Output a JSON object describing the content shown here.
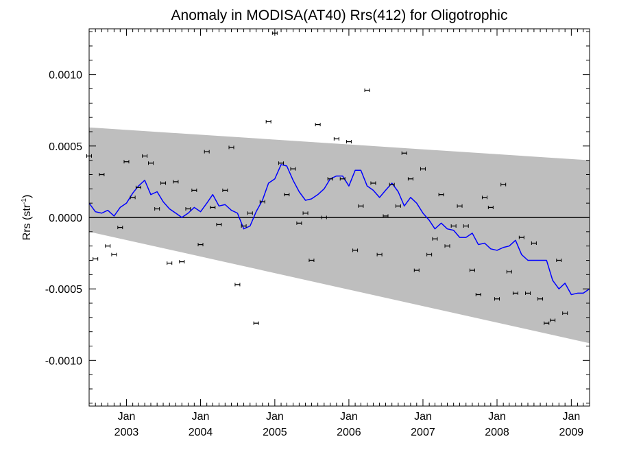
{
  "chart_data": {
    "type": "line",
    "title": "Anomaly in MODISA(AT40) Rrs(412) for Oligotrophic",
    "ylabel": "Rrs (str",
    "ylabel_exp": "-1",
    "ylabel_close": ")",
    "xlabel": "",
    "xlim": [
      "2002-07-01",
      "2009-04-01"
    ],
    "ylim": [
      -0.00132,
      0.00132
    ],
    "grid": false,
    "x_ticks": [
      {
        "month": "Jan",
        "year": "2003",
        "date": "2003-01-01"
      },
      {
        "month": "Jan",
        "year": "2004",
        "date": "2004-01-01"
      },
      {
        "month": "Jan",
        "year": "2005",
        "date": "2005-01-01"
      },
      {
        "month": "Jan",
        "year": "2006",
        "date": "2006-01-01"
      },
      {
        "month": "Jan",
        "year": "2007",
        "date": "2007-01-01"
      },
      {
        "month": "Jan",
        "year": "2008",
        "date": "2008-01-01"
      },
      {
        "month": "Jan",
        "year": "2009",
        "date": "2009-01-01"
      }
    ],
    "y_ticks": [
      {
        "value": 0.001,
        "label": "0.0010"
      },
      {
        "value": 0.0005,
        "label": "0.0005"
      },
      {
        "value": 0.0,
        "label": "0.0000"
      },
      {
        "value": -0.0005,
        "label": "-0.0005"
      },
      {
        "value": -0.001,
        "label": "-0.0010"
      }
    ],
    "zero_line": 0.0,
    "band": {
      "color": "#bebebe",
      "upper": [
        [
          "2002-07-01",
          0.00063
        ],
        [
          "2009-04-01",
          0.0004
        ]
      ],
      "lower": [
        [
          "2002-07-01",
          -0.0001
        ],
        [
          "2009-04-01",
          -0.00088
        ]
      ]
    },
    "series": [
      {
        "color": "#0000ff",
        "points": [
          [
            "2002-07-01",
            0.0001
          ],
          [
            "2002-08-01",
            4e-05
          ],
          [
            "2002-09-01",
            3e-05
          ],
          [
            "2002-10-01",
            5e-05
          ],
          [
            "2002-11-01",
            1e-05
          ],
          [
            "2002-12-01",
            7e-05
          ],
          [
            "2003-01-01",
            0.0001
          ],
          [
            "2003-02-01",
            0.00017
          ],
          [
            "2003-03-01",
            0.00022
          ],
          [
            "2003-04-01",
            0.00026
          ],
          [
            "2003-05-01",
            0.00016
          ],
          [
            "2003-06-01",
            0.00018
          ],
          [
            "2003-07-01",
            0.00011
          ],
          [
            "2003-08-01",
            6e-05
          ],
          [
            "2003-09-01",
            3e-05
          ],
          [
            "2003-10-01",
            0.0
          ],
          [
            "2003-11-01",
            3e-05
          ],
          [
            "2003-12-01",
            7e-05
          ],
          [
            "2004-01-01",
            4e-05
          ],
          [
            "2004-02-01",
            0.0001
          ],
          [
            "2004-03-01",
            0.00016
          ],
          [
            "2004-04-01",
            8e-05
          ],
          [
            "2004-05-01",
            9e-05
          ],
          [
            "2004-06-01",
            5e-05
          ],
          [
            "2004-07-01",
            3e-05
          ],
          [
            "2004-08-01",
            -8e-05
          ],
          [
            "2004-09-01",
            -6e-05
          ],
          [
            "2004-10-01",
            4e-05
          ],
          [
            "2004-11-01",
            0.00012
          ],
          [
            "2004-12-01",
            0.00024
          ],
          [
            "2005-01-01",
            0.00027
          ],
          [
            "2005-02-01",
            0.00037
          ],
          [
            "2005-03-01",
            0.00036
          ],
          [
            "2005-04-01",
            0.00026
          ],
          [
            "2005-05-01",
            0.00018
          ],
          [
            "2005-06-01",
            0.00012
          ],
          [
            "2005-07-01",
            0.00013
          ],
          [
            "2005-08-01",
            0.00016
          ],
          [
            "2005-09-01",
            0.0002
          ],
          [
            "2005-10-01",
            0.00027
          ],
          [
            "2005-11-01",
            0.00029
          ],
          [
            "2005-12-01",
            0.00029
          ],
          [
            "2006-01-01",
            0.00022
          ],
          [
            "2006-02-01",
            0.00033
          ],
          [
            "2006-03-01",
            0.00033
          ],
          [
            "2006-04-01",
            0.00022
          ],
          [
            "2006-05-01",
            0.00019
          ],
          [
            "2006-06-01",
            0.00014
          ],
          [
            "2006-07-01",
            0.00019
          ],
          [
            "2006-08-01",
            0.00024
          ],
          [
            "2006-09-01",
            0.00018
          ],
          [
            "2006-10-01",
            8e-05
          ],
          [
            "2006-11-01",
            0.00014
          ],
          [
            "2006-12-01",
            0.0001
          ],
          [
            "2007-01-01",
            3e-05
          ],
          [
            "2007-02-01",
            -2e-05
          ],
          [
            "2007-03-01",
            -8e-05
          ],
          [
            "2007-04-01",
            -4e-05
          ],
          [
            "2007-05-01",
            -8e-05
          ],
          [
            "2007-06-01",
            -9e-05
          ],
          [
            "2007-07-01",
            -0.00014
          ],
          [
            "2007-08-01",
            -0.00014
          ],
          [
            "2007-09-01",
            -0.00011
          ],
          [
            "2007-10-01",
            -0.00019
          ],
          [
            "2007-11-01",
            -0.00018
          ],
          [
            "2007-12-01",
            -0.00022
          ],
          [
            "2008-01-01",
            -0.00023
          ],
          [
            "2008-02-01",
            -0.00021
          ],
          [
            "2008-03-01",
            -0.0002
          ],
          [
            "2008-04-01",
            -0.00016
          ],
          [
            "2008-05-01",
            -0.00026
          ],
          [
            "2008-06-01",
            -0.0003
          ],
          [
            "2008-07-01",
            -0.0003
          ],
          [
            "2008-08-01",
            -0.0003
          ],
          [
            "2008-09-01",
            -0.0003
          ],
          [
            "2008-10-01",
            -0.00044
          ],
          [
            "2008-11-01",
            -0.0005
          ],
          [
            "2008-12-01",
            -0.00046
          ],
          [
            "2009-01-01",
            -0.00054
          ],
          [
            "2009-02-01",
            -0.00053
          ],
          [
            "2009-03-01",
            -0.00053
          ],
          [
            "2009-04-01",
            -0.0005
          ]
        ]
      }
    ],
    "scatter": {
      "color": "#000000",
      "points": [
        [
          "2002-07-01",
          0.00043
        ],
        [
          "2002-08-01",
          -0.00029
        ],
        [
          "2002-09-01",
          0.0003
        ],
        [
          "2002-10-01",
          -0.0002
        ],
        [
          "2002-11-01",
          -0.00026
        ],
        [
          "2002-12-01",
          -7e-05
        ],
        [
          "2003-01-01",
          0.00039
        ],
        [
          "2003-02-01",
          0.00014
        ],
        [
          "2003-03-01",
          0.00021
        ],
        [
          "2003-04-01",
          0.00043
        ],
        [
          "2003-05-01",
          0.00038
        ],
        [
          "2003-06-01",
          6e-05
        ],
        [
          "2003-07-01",
          0.00024
        ],
        [
          "2003-08-01",
          -0.00032
        ],
        [
          "2003-09-01",
          0.00025
        ],
        [
          "2003-10-01",
          -0.00031
        ],
        [
          "2003-11-01",
          6e-05
        ],
        [
          "2003-12-01",
          0.00019
        ],
        [
          "2004-01-01",
          -0.00019
        ],
        [
          "2004-02-01",
          0.00046
        ],
        [
          "2004-03-01",
          7e-05
        ],
        [
          "2004-04-01",
          -5e-05
        ],
        [
          "2004-05-01",
          0.00019
        ],
        [
          "2004-06-01",
          0.00049
        ],
        [
          "2004-07-01",
          -0.00047
        ],
        [
          "2004-08-01",
          -6e-05
        ],
        [
          "2004-09-01",
          3e-05
        ],
        [
          "2004-10-01",
          -0.00074
        ],
        [
          "2004-11-01",
          0.00011
        ],
        [
          "2004-12-01",
          0.00067
        ],
        [
          "2005-01-01",
          0.00129
        ],
        [
          "2005-02-01",
          0.00038
        ],
        [
          "2005-03-01",
          0.00016
        ],
        [
          "2005-04-01",
          0.00034
        ],
        [
          "2005-05-01",
          -4e-05
        ],
        [
          "2005-06-01",
          3e-05
        ],
        [
          "2005-07-01",
          -0.0003
        ],
        [
          "2005-08-01",
          0.00065
        ],
        [
          "2005-09-01",
          0.0
        ],
        [
          "2005-10-01",
          0.00027
        ],
        [
          "2005-11-01",
          0.00055
        ],
        [
          "2005-12-01",
          0.00027
        ],
        [
          "2006-01-01",
          0.00053
        ],
        [
          "2006-02-01",
          -0.00023
        ],
        [
          "2006-03-01",
          8e-05
        ],
        [
          "2006-04-01",
          0.00089
        ],
        [
          "2006-05-01",
          0.00024
        ],
        [
          "2006-06-01",
          -0.00026
        ],
        [
          "2006-07-01",
          1e-05
        ],
        [
          "2006-08-01",
          0.00023
        ],
        [
          "2006-09-01",
          8e-05
        ],
        [
          "2006-10-01",
          0.00045
        ],
        [
          "2006-11-01",
          0.00027
        ],
        [
          "2006-12-01",
          -0.00037
        ],
        [
          "2007-01-01",
          0.00034
        ],
        [
          "2007-02-01",
          -0.00026
        ],
        [
          "2007-03-01",
          -0.00015
        ],
        [
          "2007-04-01",
          0.00016
        ],
        [
          "2007-05-01",
          -0.0002
        ],
        [
          "2007-06-01",
          -6e-05
        ],
        [
          "2007-07-01",
          8e-05
        ],
        [
          "2007-08-01",
          -6e-05
        ],
        [
          "2007-09-01",
          -0.00037
        ],
        [
          "2007-10-01",
          -0.00054
        ],
        [
          "2007-11-01",
          0.00014
        ],
        [
          "2007-12-01",
          7e-05
        ],
        [
          "2008-01-01",
          -0.00057
        ],
        [
          "2008-02-01",
          0.00023
        ],
        [
          "2008-03-01",
          -0.00038
        ],
        [
          "2008-04-01",
          -0.00053
        ],
        [
          "2008-05-01",
          -0.00014
        ],
        [
          "2008-06-01",
          -0.00053
        ],
        [
          "2008-07-01",
          -0.00018
        ],
        [
          "2008-08-01",
          -0.00057
        ],
        [
          "2008-09-01",
          -0.00074
        ],
        [
          "2008-10-01",
          -0.00072
        ],
        [
          "2008-11-01",
          -0.0003
        ],
        [
          "2008-12-01",
          -0.00067
        ]
      ]
    }
  }
}
